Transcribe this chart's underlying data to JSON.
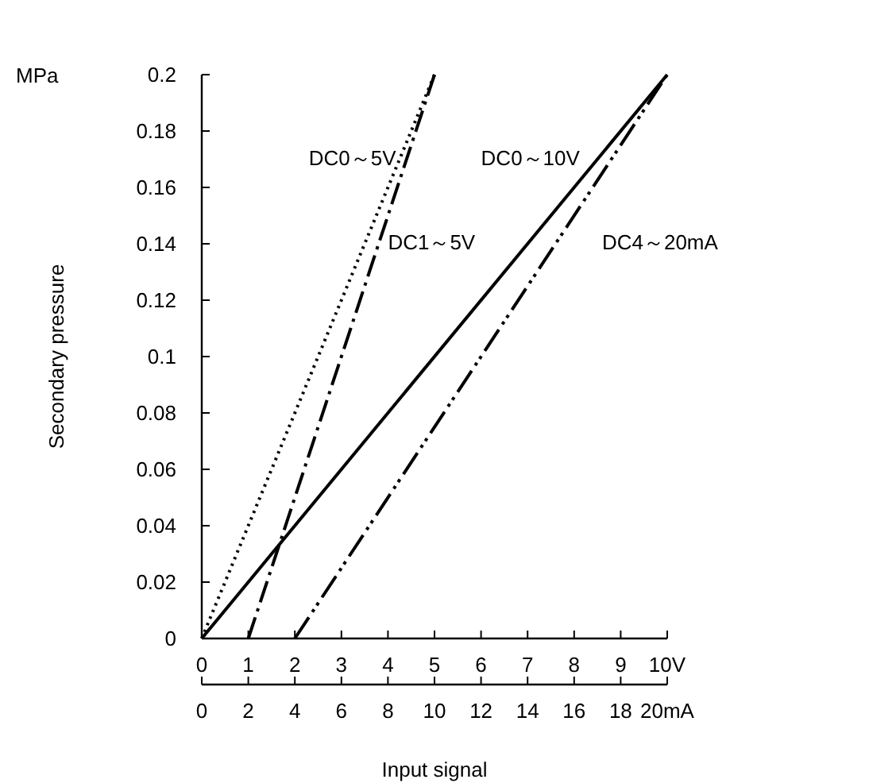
{
  "chart_data": {
    "type": "line",
    "xlabel": "Input signal",
    "ylabel": "Secondary pressure",
    "annotations": [
      "MPa"
    ],
    "xlim": [
      0,
      10
    ],
    "xticks": [
      0,
      1,
      2,
      3,
      4,
      5,
      6,
      7,
      8,
      9,
      {
        "value": 10,
        "label": "10V"
      }
    ],
    "x2lim": [
      0,
      20
    ],
    "x2ticks": [
      0,
      2,
      4,
      6,
      8,
      10,
      12,
      14,
      16,
      {
        "value": 18,
        "label": "18"
      },
      {
        "value": 20,
        "label": "20mA"
      }
    ],
    "ylim": [
      0,
      0.2
    ],
    "yticks": [
      0,
      0.02,
      0.04,
      0.06,
      0.08,
      0.1,
      0.12,
      0.14,
      0.16,
      0.18,
      0.2
    ],
    "grid": false,
    "series": [
      {
        "name": "DC0～5V",
        "color": "#000000",
        "line_style": "dotted",
        "x": [
          0,
          5
        ],
        "values": [
          0,
          0.2
        ]
      },
      {
        "name": "DC1～5V",
        "color": "#000000",
        "line_style": "dashdot",
        "x": [
          1,
          5
        ],
        "values": [
          0,
          0.2
        ]
      },
      {
        "name": "DC0～10V",
        "color": "#000000",
        "line_style": "solid",
        "x": [
          0,
          10
        ],
        "values": [
          0,
          0.2
        ]
      },
      {
        "name": "DC4～20mA",
        "color": "#000000",
        "line_style": "dashdotdot",
        "x": [
          2,
          10
        ],
        "values": [
          0,
          0.2
        ]
      }
    ]
  }
}
